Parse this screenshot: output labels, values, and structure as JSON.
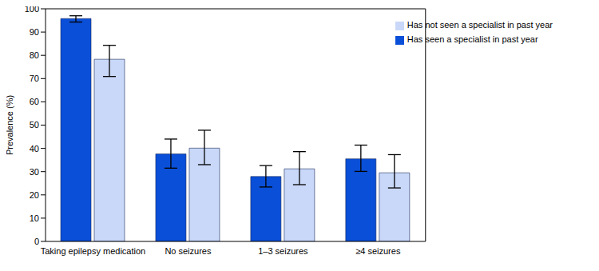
{
  "chart_data": {
    "type": "bar",
    "y_label": "Prevalence (%)",
    "categories": [
      "Taking epilepsy medication",
      "No seizures",
      "1–3 seizures",
      "≥4 seizures"
    ],
    "series": [
      {
        "name": "Has seen a specialist in past year",
        "color": "#0a4fd8",
        "values": [
          95.8,
          37.6,
          27.9,
          35.5
        ],
        "error_low": [
          94.3,
          31.5,
          23.4,
          30.1
        ],
        "error_high": [
          97.0,
          44.0,
          32.6,
          41.4
        ]
      },
      {
        "name": "Has not seen a specialist in past year",
        "color": "#c9d8f8",
        "values": [
          78.3,
          40.1,
          31.2,
          29.5
        ],
        "error_low": [
          70.9,
          33.0,
          24.4,
          23.0
        ],
        "error_high": [
          84.3,
          47.8,
          38.6,
          37.3
        ]
      }
    ],
    "ylim": [
      0,
      100
    ],
    "yticks": [
      0,
      10,
      20,
      30,
      40,
      50,
      60,
      70,
      80,
      90,
      100
    ],
    "grid": false,
    "legend": "upper right"
  }
}
